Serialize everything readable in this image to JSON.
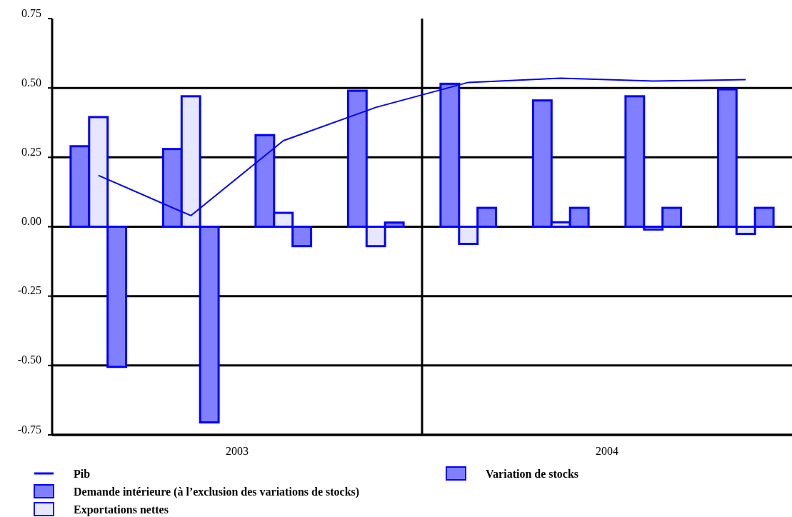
{
  "chart_data": {
    "type": "bar",
    "categories": [
      null,
      null,
      null,
      null,
      null,
      null,
      null,
      null
    ],
    "series": [
      {
        "name": "Pib",
        "type": "line",
        "color": "#0000ff",
        "values": [
          0.185,
          0.04,
          0.31,
          0.43,
          0.52,
          0.535,
          0.525,
          0.53
        ]
      },
      {
        "name": "Demande intérieure (à l’exclusion des variations de stocks)",
        "color": "#8080ff",
        "values": [
          0.29,
          0.28,
          0.33,
          0.49,
          0.515,
          0.455,
          0.47,
          0.495
        ]
      },
      {
        "name": "Exportations nettes",
        "color": "#e6e6ff",
        "values": [
          0.395,
          0.47,
          0.05,
          -0.07,
          -0.062,
          0.016,
          -0.01,
          -0.026
        ]
      },
      {
        "name": "Variation de stocks",
        "color": "#8080ff",
        "values": [
          -0.505,
          -0.705,
          -0.07,
          0.015,
          0.068,
          0.068,
          0.068,
          0.068
        ]
      }
    ],
    "annotations": [
      "2003",
      "2004"
    ],
    "ylim": [
      -0.75,
      0.75
    ],
    "yticks": [
      {
        "value": -0.75,
        "label": "-0.75"
      },
      {
        "value": -0.5,
        "label": "-0.50"
      },
      {
        "value": -0.25,
        "label": "-0.25"
      },
      {
        "value": 0,
        "label": "0.00"
      },
      {
        "value": 0.25,
        "label": "0.25"
      },
      {
        "value": 0.5,
        "label": "0.50"
      },
      {
        "value": 0.75,
        "label": "0.75"
      }
    ],
    "grid": "y",
    "legend": "bottom"
  }
}
